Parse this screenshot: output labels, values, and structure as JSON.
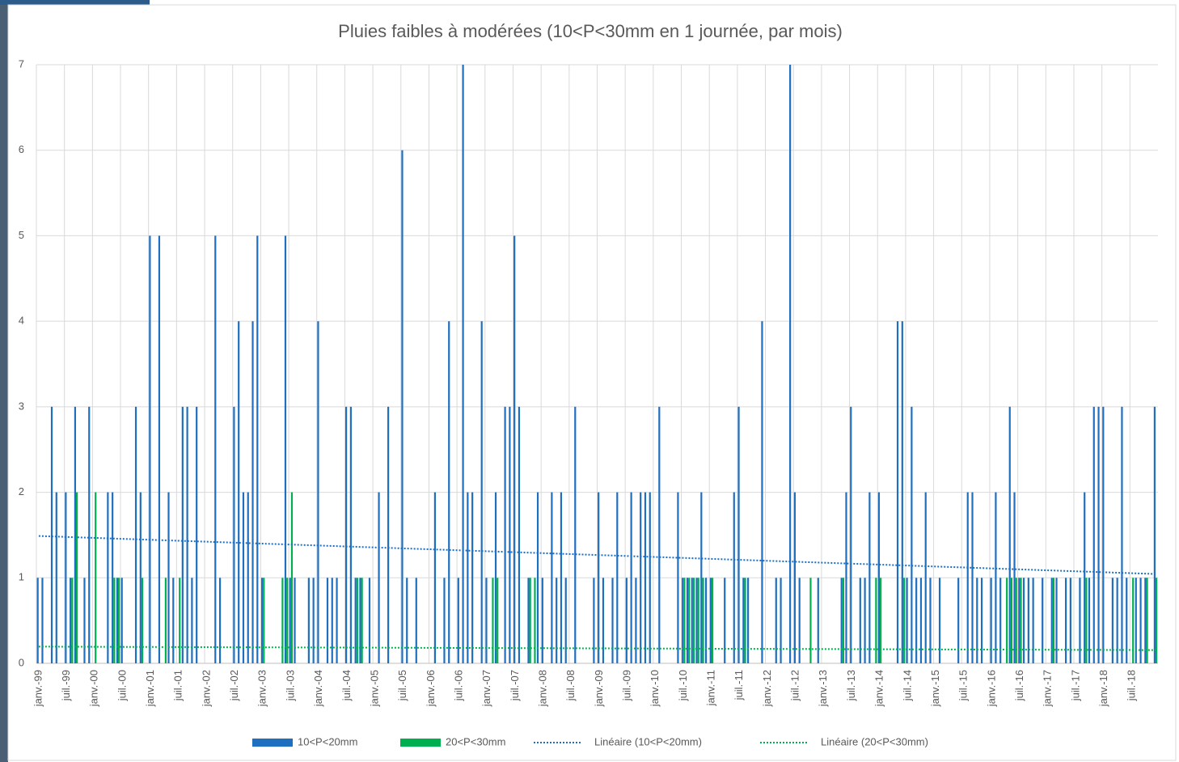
{
  "chart_data": {
    "type": "bar",
    "title": "Pluies faibles à modérées (10<P<30mm en 1 journée, par mois)",
    "categories": [
      "janv.-99",
      null,
      null,
      null,
      null,
      null,
      "juil.-99",
      null,
      null,
      null,
      null,
      null,
      "janv.-00",
      null,
      null,
      null,
      null,
      null,
      "juil.-00",
      null,
      null,
      null,
      null,
      null,
      "janv.-01",
      null,
      null,
      null,
      null,
      null,
      "juil.-01",
      null,
      null,
      null,
      null,
      null,
      "janv.-02",
      null,
      null,
      null,
      null,
      null,
      "juil.-02",
      null,
      null,
      null,
      null,
      null,
      "janv.-03",
      null,
      null,
      null,
      null,
      null,
      "juil.-03",
      null,
      null,
      null,
      null,
      null,
      "janv.-04",
      null,
      null,
      null,
      null,
      null,
      "juil.-04",
      null,
      null,
      null,
      null,
      null,
      "janv.-05",
      null,
      null,
      null,
      null,
      null,
      "juil.-05",
      null,
      null,
      null,
      null,
      null,
      "janv.-06",
      null,
      null,
      null,
      null,
      null,
      "juil.-06",
      null,
      null,
      null,
      null,
      null,
      "janv.-07",
      null,
      null,
      null,
      null,
      null,
      "juil.-07",
      null,
      null,
      null,
      null,
      null,
      "janv.-08",
      null,
      null,
      null,
      null,
      null,
      "juil.-08",
      null,
      null,
      null,
      null,
      null,
      "janv.-09",
      null,
      null,
      null,
      null,
      null,
      "juil.-09",
      null,
      null,
      null,
      null,
      null,
      "janv.-10",
      null,
      null,
      null,
      null,
      null,
      "juil.-10",
      null,
      null,
      null,
      null,
      null,
      "janv.-11",
      null,
      null,
      null,
      null,
      null,
      "juil.-11",
      null,
      null,
      null,
      null,
      null,
      "janv.-12",
      null,
      null,
      null,
      null,
      null,
      "juil.-12",
      null,
      null,
      null,
      null,
      null,
      "janv.-13",
      null,
      null,
      null,
      null,
      null,
      "juil.-13",
      null,
      null,
      null,
      null,
      null,
      "janv.-14",
      null,
      null,
      null,
      null,
      null,
      "juil.-14",
      null,
      null,
      null,
      null,
      null,
      "janv.-15",
      null,
      null,
      null,
      null,
      null,
      "juil.-15",
      null,
      null,
      null,
      null,
      null,
      "janv.-16",
      null,
      null,
      null,
      null,
      null,
      "juil.-16",
      null,
      null,
      null,
      null,
      null,
      "janv.-17",
      null,
      null,
      null,
      null,
      null,
      "juil.-17",
      null,
      null,
      null,
      null,
      null,
      "janv.-18",
      null,
      null,
      null,
      null,
      null,
      "juil.-18",
      null,
      null,
      null,
      null,
      null
    ],
    "series": [
      {
        "name": "10<P<20mm",
        "color": "#1f6fc0",
        "trendline": {
          "name": "Linéaire (10<P<20mm)",
          "color": "#1f6fc0"
        },
        "values": [
          1,
          1,
          0,
          3,
          2,
          0,
          2,
          1,
          3,
          0,
          1,
          3,
          0,
          0,
          0,
          2,
          2,
          1,
          1,
          0,
          0,
          3,
          2,
          0,
          5,
          0,
          5,
          0,
          2,
          1,
          0,
          3,
          3,
          1,
          3,
          0,
          0,
          0,
          5,
          1,
          0,
          0,
          3,
          4,
          2,
          2,
          4,
          5,
          1,
          0,
          0,
          0,
          0,
          5,
          1,
          1,
          0,
          0,
          1,
          1,
          4,
          0,
          1,
          1,
          1,
          0,
          3,
          3,
          1,
          1,
          0,
          1,
          0,
          2,
          0,
          3,
          0,
          0,
          6,
          1,
          0,
          1,
          0,
          0,
          0,
          2,
          0,
          1,
          4,
          0,
          1,
          7,
          2,
          2,
          0,
          4,
          1,
          0,
          2,
          0,
          3,
          3,
          5,
          3,
          0,
          1,
          0,
          2,
          1,
          0,
          2,
          1,
          2,
          1,
          0,
          3,
          0,
          0,
          0,
          1,
          2,
          1,
          0,
          1,
          2,
          0,
          1,
          2,
          1,
          2,
          2,
          2,
          0,
          3,
          0,
          0,
          0,
          2,
          1,
          1,
          1,
          1,
          2,
          1,
          1,
          0,
          0,
          1,
          0,
          2,
          3,
          1,
          1,
          0,
          0,
          4,
          0,
          0,
          1,
          1,
          0,
          7,
          2,
          1,
          0,
          0,
          0,
          1,
          0,
          0,
          0,
          0,
          1,
          2,
          3,
          0,
          1,
          1,
          2,
          0,
          2,
          0,
          0,
          0,
          4,
          4,
          1,
          3,
          1,
          1,
          2,
          1,
          0,
          1,
          0,
          0,
          0,
          1,
          0,
          2,
          2,
          1,
          1,
          0,
          1,
          2,
          1,
          0,
          3,
          2,
          1,
          1,
          1,
          1,
          0,
          1,
          0,
          1,
          1,
          0,
          1,
          1,
          0,
          1,
          2,
          1,
          3,
          3,
          3,
          0,
          1,
          1,
          3,
          1,
          0,
          1,
          1,
          1,
          0,
          3
        ]
      },
      {
        "name": "20<P<30mm",
        "color": "#00b050",
        "trendline": {
          "name": "Linéaire (20<P<30mm)",
          "color": "#00b050"
        },
        "values": [
          0,
          0,
          0,
          0,
          0,
          0,
          0,
          1,
          2,
          0,
          0,
          0,
          2,
          0,
          0,
          0,
          1,
          1,
          0,
          0,
          0,
          0,
          1,
          0,
          0,
          0,
          0,
          1,
          0,
          0,
          1,
          0,
          0,
          0,
          0,
          0,
          0,
          0,
          0,
          0,
          0,
          0,
          0,
          0,
          0,
          0,
          0,
          0,
          1,
          0,
          0,
          0,
          1,
          1,
          2,
          0,
          0,
          0,
          0,
          0,
          0,
          0,
          0,
          0,
          0,
          0,
          0,
          0,
          1,
          1,
          0,
          0,
          0,
          0,
          0,
          0,
          0,
          0,
          0,
          0,
          0,
          0,
          0,
          0,
          0,
          0,
          0,
          0,
          0,
          0,
          0,
          0,
          0,
          0,
          0,
          0,
          0,
          1,
          1,
          0,
          0,
          0,
          0,
          0,
          0,
          1,
          1,
          0,
          0,
          0,
          0,
          0,
          0,
          0,
          0,
          0,
          0,
          0,
          0,
          0,
          0,
          0,
          0,
          0,
          0,
          0,
          0,
          0,
          0,
          0,
          0,
          0,
          0,
          0,
          0,
          0,
          0,
          0,
          1,
          1,
          1,
          1,
          1,
          0,
          1,
          0,
          0,
          0,
          0,
          0,
          0,
          1,
          0,
          0,
          0,
          0,
          0,
          0,
          0,
          0,
          0,
          0,
          0,
          0,
          0,
          1,
          0,
          0,
          0,
          0,
          0,
          0,
          1,
          0,
          0,
          0,
          0,
          0,
          0,
          1,
          1,
          0,
          0,
          0,
          0,
          1,
          0,
          0,
          0,
          0,
          0,
          0,
          0,
          0,
          0,
          0,
          0,
          0,
          0,
          0,
          0,
          0,
          0,
          0,
          0,
          0,
          0,
          1,
          1,
          1,
          1,
          0,
          0,
          0,
          0,
          0,
          0,
          1,
          0,
          0,
          0,
          0,
          0,
          0,
          1,
          0,
          0,
          0,
          0,
          0,
          0,
          0,
          0,
          0,
          1,
          0,
          0,
          1,
          0,
          1
        ]
      }
    ],
    "ylim": [
      0,
      7
    ],
    "yticks": [
      0,
      1,
      2,
      3,
      4,
      5,
      6,
      7
    ],
    "grid": true,
    "legend": "bottom"
  }
}
